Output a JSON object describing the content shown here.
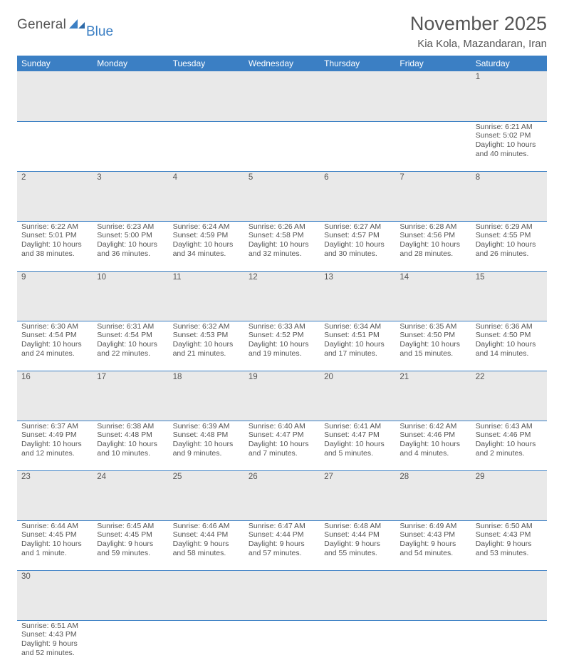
{
  "logo": {
    "text1": "General",
    "text2": "Blue"
  },
  "title": "November 2025",
  "location": "Kia Kola, Mazandaran, Iran",
  "colors": {
    "header_bg": "#3b7fc4",
    "header_text": "#ffffff",
    "daynum_bg": "#e9e9e9",
    "border": "#3b7fc4",
    "text": "#555555",
    "logo_blue": "#3b7fc4"
  },
  "typography": {
    "title_fontsize": 27,
    "location_fontsize": 15,
    "header_fontsize": 12,
    "body_fontsize": 10.5
  },
  "weekdays": [
    "Sunday",
    "Monday",
    "Tuesday",
    "Wednesday",
    "Thursday",
    "Friday",
    "Saturday"
  ],
  "weeks": [
    [
      null,
      null,
      null,
      null,
      null,
      null,
      {
        "n": "1",
        "rise": "6:21 AM",
        "set": "5:02 PM",
        "day": "10 hours and 40 minutes."
      }
    ],
    [
      {
        "n": "2",
        "rise": "6:22 AM",
        "set": "5:01 PM",
        "day": "10 hours and 38 minutes."
      },
      {
        "n": "3",
        "rise": "6:23 AM",
        "set": "5:00 PM",
        "day": "10 hours and 36 minutes."
      },
      {
        "n": "4",
        "rise": "6:24 AM",
        "set": "4:59 PM",
        "day": "10 hours and 34 minutes."
      },
      {
        "n": "5",
        "rise": "6:26 AM",
        "set": "4:58 PM",
        "day": "10 hours and 32 minutes."
      },
      {
        "n": "6",
        "rise": "6:27 AM",
        "set": "4:57 PM",
        "day": "10 hours and 30 minutes."
      },
      {
        "n": "7",
        "rise": "6:28 AM",
        "set": "4:56 PM",
        "day": "10 hours and 28 minutes."
      },
      {
        "n": "8",
        "rise": "6:29 AM",
        "set": "4:55 PM",
        "day": "10 hours and 26 minutes."
      }
    ],
    [
      {
        "n": "9",
        "rise": "6:30 AM",
        "set": "4:54 PM",
        "day": "10 hours and 24 minutes."
      },
      {
        "n": "10",
        "rise": "6:31 AM",
        "set": "4:54 PM",
        "day": "10 hours and 22 minutes."
      },
      {
        "n": "11",
        "rise": "6:32 AM",
        "set": "4:53 PM",
        "day": "10 hours and 21 minutes."
      },
      {
        "n": "12",
        "rise": "6:33 AM",
        "set": "4:52 PM",
        "day": "10 hours and 19 minutes."
      },
      {
        "n": "13",
        "rise": "6:34 AM",
        "set": "4:51 PM",
        "day": "10 hours and 17 minutes."
      },
      {
        "n": "14",
        "rise": "6:35 AM",
        "set": "4:50 PM",
        "day": "10 hours and 15 minutes."
      },
      {
        "n": "15",
        "rise": "6:36 AM",
        "set": "4:50 PM",
        "day": "10 hours and 14 minutes."
      }
    ],
    [
      {
        "n": "16",
        "rise": "6:37 AM",
        "set": "4:49 PM",
        "day": "10 hours and 12 minutes."
      },
      {
        "n": "17",
        "rise": "6:38 AM",
        "set": "4:48 PM",
        "day": "10 hours and 10 minutes."
      },
      {
        "n": "18",
        "rise": "6:39 AM",
        "set": "4:48 PM",
        "day": "10 hours and 9 minutes."
      },
      {
        "n": "19",
        "rise": "6:40 AM",
        "set": "4:47 PM",
        "day": "10 hours and 7 minutes."
      },
      {
        "n": "20",
        "rise": "6:41 AM",
        "set": "4:47 PM",
        "day": "10 hours and 5 minutes."
      },
      {
        "n": "21",
        "rise": "6:42 AM",
        "set": "4:46 PM",
        "day": "10 hours and 4 minutes."
      },
      {
        "n": "22",
        "rise": "6:43 AM",
        "set": "4:46 PM",
        "day": "10 hours and 2 minutes."
      }
    ],
    [
      {
        "n": "23",
        "rise": "6:44 AM",
        "set": "4:45 PM",
        "day": "10 hours and 1 minute."
      },
      {
        "n": "24",
        "rise": "6:45 AM",
        "set": "4:45 PM",
        "day": "9 hours and 59 minutes."
      },
      {
        "n": "25",
        "rise": "6:46 AM",
        "set": "4:44 PM",
        "day": "9 hours and 58 minutes."
      },
      {
        "n": "26",
        "rise": "6:47 AM",
        "set": "4:44 PM",
        "day": "9 hours and 57 minutes."
      },
      {
        "n": "27",
        "rise": "6:48 AM",
        "set": "4:44 PM",
        "day": "9 hours and 55 minutes."
      },
      {
        "n": "28",
        "rise": "6:49 AM",
        "set": "4:43 PM",
        "day": "9 hours and 54 minutes."
      },
      {
        "n": "29",
        "rise": "6:50 AM",
        "set": "4:43 PM",
        "day": "9 hours and 53 minutes."
      }
    ],
    [
      {
        "n": "30",
        "rise": "6:51 AM",
        "set": "4:43 PM",
        "day": "9 hours and 52 minutes."
      },
      null,
      null,
      null,
      null,
      null,
      null
    ]
  ],
  "labels": {
    "sunrise": "Sunrise: ",
    "sunset": "Sunset: ",
    "daylight": "Daylight: "
  }
}
